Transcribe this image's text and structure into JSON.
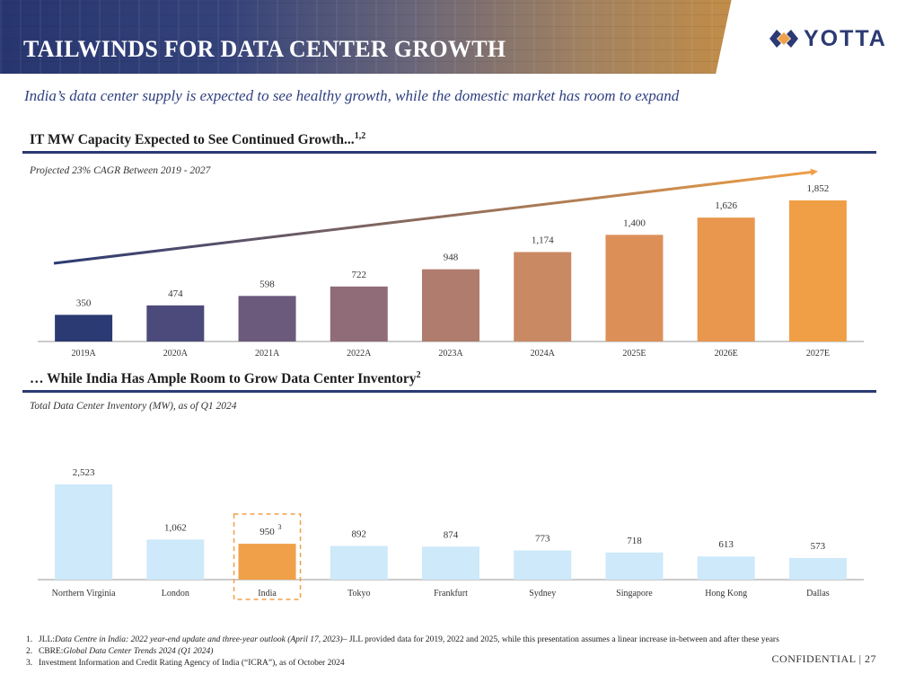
{
  "header": {
    "title": "TAILWINDS FOR DATA CENTER GROWTH",
    "logo_text": "YOTTA",
    "subtitle": "India’s data center supply is expected to see healthy growth, while the domestic market has room to expand"
  },
  "section1": {
    "title": "IT MW Capacity Expected to See Continued Growth...",
    "title_sup": "1,2",
    "note": "Projected 23% CAGR Between 2019 - 2027"
  },
  "section2": {
    "title": "… While India Has Ample Room to Grow Data Center Inventory",
    "title_sup": "2",
    "note": "Total Data Center Inventory (MW), as of Q1 2024"
  },
  "chart_data": [
    {
      "type": "bar",
      "title": "IT MW Capacity Expected to See Continued Growth...",
      "categories": [
        "2019A",
        "2020A",
        "2021A",
        "2022A",
        "2023A",
        "2024A",
        "2025E",
        "2026E",
        "2027E"
      ],
      "values": [
        350,
        474,
        598,
        722,
        948,
        1174,
        1400,
        1626,
        1852
      ],
      "labels": [
        "350",
        "474",
        "598",
        "722",
        "948",
        "1,174",
        "1,400",
        "1,626",
        "1,852"
      ],
      "colors": [
        "#2b3a73",
        "#4b4a7b",
        "#6b5a7c",
        "#8f6c78",
        "#af7c6e",
        "#c98963",
        "#dc9058",
        "#e9964e",
        "#f09f46"
      ],
      "ylim": [
        0,
        1852
      ],
      "annotation": "Projected 23% CAGR Between 2019 - 2027"
    },
    {
      "type": "bar",
      "title": "… While India Has Ample Room to Grow Data Center Inventory",
      "categories": [
        "Northern Virginia",
        "London",
        "India",
        "Tokyo",
        "Frankfurt",
        "Sydney",
        "Singapore",
        "Hong Kong",
        "Dallas"
      ],
      "values": [
        2523,
        1062,
        950,
        892,
        874,
        773,
        718,
        613,
        573
      ],
      "labels": [
        "2,523",
        "1,062",
        "950",
        "892",
        "874",
        "773",
        "718",
        "613",
        "573"
      ],
      "highlight": "India",
      "highlight_footnote": "3",
      "colors": {
        "default": "#cde9fa",
        "highlight": "#f0a048",
        "dashed_box": "#f0a048"
      },
      "ylim": [
        0,
        2523
      ]
    }
  ],
  "footnotes": [
    {
      "num": "1.",
      "source": "JLL: ",
      "title": "Data Centre in India: 2022 year-end update and three-year outlook (April 17, 2023)",
      "rest": " – JLL provided data for 2019, 2022 and 2025, while this presentation assumes a linear increase in-between and after these years"
    },
    {
      "num": "2.",
      "source": "CBRE: ",
      "title": "Global Data Center Trends 2024 (Q1 2024)",
      "rest": ""
    },
    {
      "num": "3.",
      "source": "Investment Information and Credit Rating Agency of India (“ICRA”), as of October 2024",
      "title": "",
      "rest": ""
    }
  ],
  "footer": {
    "text": "CONFIDENTIAL | 27"
  }
}
